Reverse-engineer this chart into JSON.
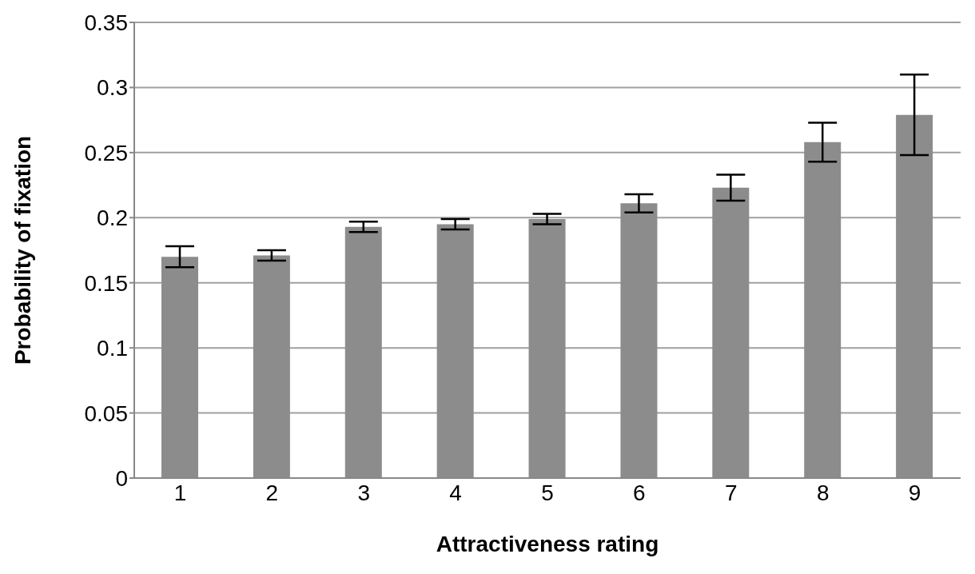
{
  "chart_data": {
    "type": "bar",
    "xlabel": "Attractiveness rating",
    "ylabel": "Probability of fixation",
    "categories": [
      "1",
      "2",
      "3",
      "4",
      "5",
      "6",
      "7",
      "8",
      "9"
    ],
    "values": [
      0.17,
      0.171,
      0.193,
      0.195,
      0.199,
      0.211,
      0.223,
      0.258,
      0.279
    ],
    "errors": [
      0.008,
      0.004,
      0.004,
      0.004,
      0.004,
      0.007,
      0.01,
      0.015,
      0.031
    ],
    "color": "#8c8c8c",
    "ylim": [
      0,
      0.35
    ],
    "yticks": [
      0,
      0.05,
      0.1,
      0.15,
      0.2,
      0.25,
      0.3,
      0.35
    ],
    "grid": "y",
    "legend": false
  }
}
